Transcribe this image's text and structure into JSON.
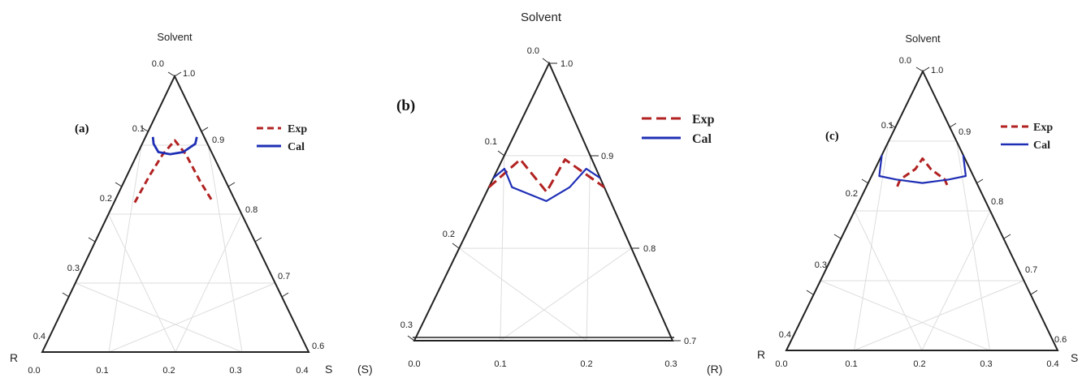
{
  "colors": {
    "exp": "#b22222",
    "cal": "#1f2fb5",
    "axis": "#222222",
    "grid": "#dddddd"
  },
  "chart_data": [
    {
      "type": "line",
      "panel_label": "(a)",
      "title": "Solvent",
      "left_label": "R",
      "right_label": "S",
      "left_edge_ticks": [
        "0.0",
        "0.1",
        "0.2",
        "0.3",
        "0.4"
      ],
      "right_edge_ticks": [
        "1.0",
        "0.9",
        "0.8",
        "0.7",
        "0.6"
      ],
      "bottom_ticks": [
        "0.0",
        "0.1",
        "0.2",
        "0.3",
        "0.4"
      ],
      "legend": [
        "Exp",
        "Cal"
      ],
      "series": [
        {
          "name": "Exp",
          "x": [
            0.068,
            0.095,
            0.136,
            0.2,
            0.258,
            0.3,
            0.325
          ],
          "y": [
            0.095,
            0.055,
            0.025,
            0.005,
            0.025,
            0.065,
            0.095
          ]
        },
        {
          "name": "Cal",
          "x": [
            0.05,
            0.07,
            0.11,
            0.175,
            0.245,
            0.325,
            0.35
          ],
          "y": [
            0.0,
            0.01,
            0.022,
            0.025,
            0.022,
            0.01,
            0.0
          ]
        }
      ]
    },
    {
      "type": "line",
      "panel_label": "(b)",
      "title": "Solvent",
      "left_label": "(S)",
      "right_label": "(R)",
      "left_edge_ticks": [
        "0.0",
        "0.1",
        "0.2",
        "0.3"
      ],
      "right_edge_ticks": [
        "1.0",
        "0.9",
        "0.8",
        "0.7"
      ],
      "bottom_ticks": [
        "0.0",
        "0.1",
        "0.2",
        "0.3"
      ],
      "legend": [
        "Exp",
        "Cal"
      ],
      "series": [
        {
          "name": "Exp",
          "x": [
            0.0,
            0.06,
            0.15,
            0.21,
            0.3
          ],
          "y": [
            0.05,
            0.02,
            0.055,
            0.02,
            0.05
          ]
        },
        {
          "name": "Cal",
          "x": [
            0.0,
            0.02,
            0.06,
            0.15,
            0.21,
            0.27,
            0.3
          ],
          "y": [
            0.04,
            0.03,
            0.05,
            0.065,
            0.05,
            0.03,
            0.04
          ]
        }
      ]
    },
    {
      "type": "line",
      "panel_label": "(c)",
      "title": "Solvent",
      "left_label": "R",
      "right_label": "S",
      "left_edge_ticks": [
        "0.0",
        "0.1",
        "0.2",
        "0.3",
        "0.4"
      ],
      "right_edge_ticks": [
        "1.0",
        "0.9",
        "0.8",
        "0.7",
        "0.6"
      ],
      "bottom_ticks": [
        "0.0",
        "0.1",
        "0.2",
        "0.3",
        "0.4"
      ],
      "legend": [
        "Exp",
        "Cal"
      ],
      "series": [
        {
          "name": "Exp",
          "x": [
            0.11,
            0.115,
            0.17,
            0.2,
            0.235,
            0.285,
            0.29
          ],
          "y": [
            0.045,
            0.035,
            0.02,
            0.005,
            0.02,
            0.035,
            0.045
          ]
        },
        {
          "name": "Cal",
          "x": [
            0.0,
            0.03,
            0.1,
            0.2,
            0.3,
            0.37,
            0.4
          ],
          "y": [
            0.0,
            0.03,
            0.035,
            0.04,
            0.035,
            0.03,
            0.0
          ]
        }
      ]
    }
  ]
}
